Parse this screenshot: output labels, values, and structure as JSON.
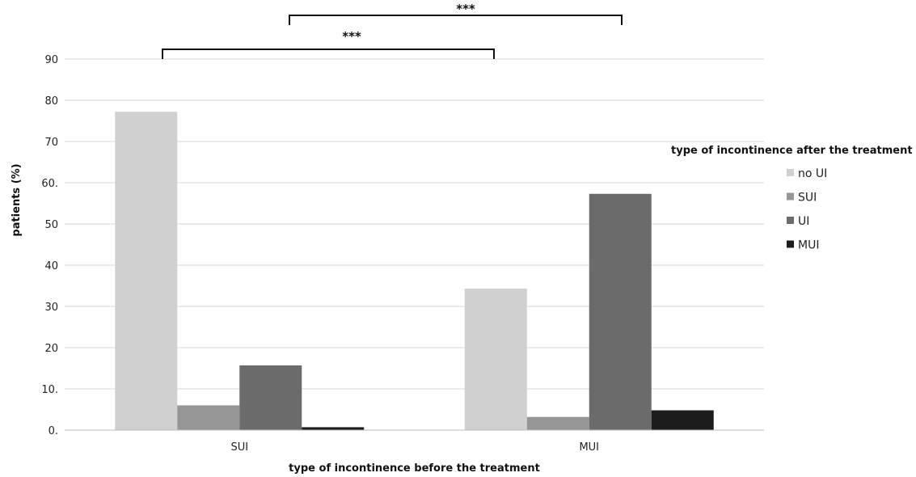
{
  "chart_data": {
    "type": "bar",
    "title": "",
    "xlabel": "type of incontinence before the treatment",
    "ylabel": "patients (%)",
    "ylim": [
      0,
      90
    ],
    "yticks": [
      0,
      10,
      20,
      30,
      40,
      50,
      60,
      70,
      80,
      90
    ],
    "ytick_labels": [
      "0.",
      "10.",
      "20",
      "30",
      "40",
      "50",
      "60.",
      "70",
      "80",
      "90"
    ],
    "grid": true,
    "categories": [
      "SUI",
      "MUI"
    ],
    "legend_title": "type of incontinence after  the treatment",
    "legend_position": "right",
    "series": [
      {
        "name": "no UI",
        "color": "#d0d0d0",
        "values": [
          77.2,
          34.3
        ]
      },
      {
        "name": "SUI",
        "color": "#969696",
        "values": [
          6.0,
          3.2
        ]
      },
      {
        "name": "UI",
        "color": "#6b6b6b",
        "values": [
          15.7,
          57.3
        ]
      },
      {
        "name": "MUI",
        "color": "#1c1c1c",
        "values": [
          0.7,
          4.8
        ]
      }
    ],
    "annotations": [
      {
        "label": "***",
        "from": "SUI",
        "to": "MUI"
      },
      {
        "label": "***",
        "from": "SUI",
        "to": "MUI"
      }
    ]
  }
}
